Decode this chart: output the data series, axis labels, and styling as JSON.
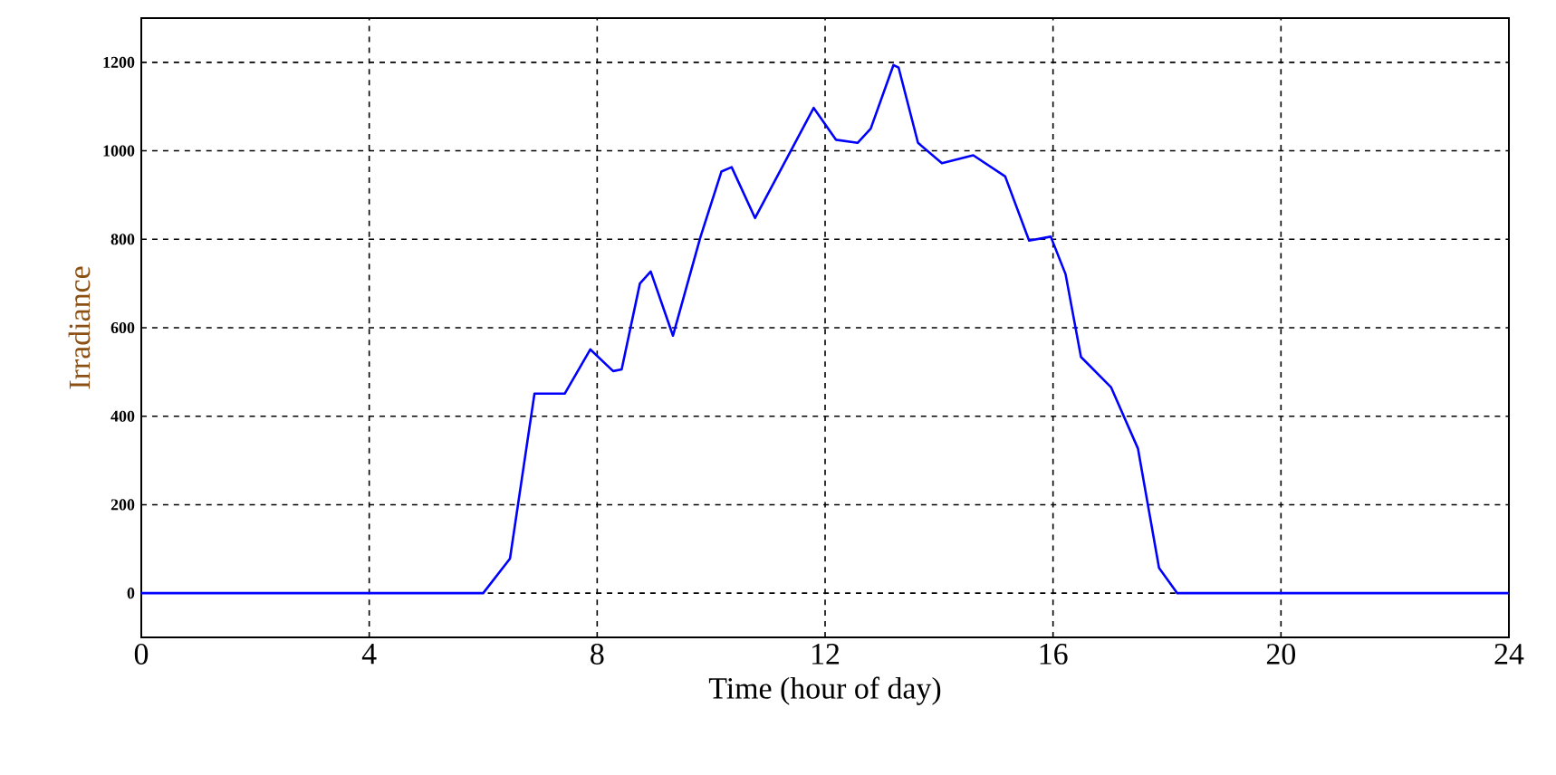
{
  "chart_data": {
    "type": "line",
    "xlabel": "Time (hour of day)",
    "ylabel": "Irradiance",
    "x": [
      0,
      6.0,
      6.47,
      6.9,
      7.43,
      7.88,
      8.28,
      8.43,
      8.75,
      8.94,
      9.33,
      9.81,
      10.18,
      10.36,
      10.77,
      11.8,
      12.19,
      12.57,
      12.8,
      13.2,
      13.29,
      13.63,
      14.05,
      14.6,
      15.16,
      15.58,
      15.96,
      16.22,
      16.49,
      17.02,
      17.49,
      17.86,
      18.18,
      24
    ],
    "series": [
      {
        "color": "#0000ff",
        "values": [
          0,
          0,
          78,
          451,
          451,
          551,
          502,
          506,
          700,
          727,
          582,
          804,
          953,
          963,
          848,
          1097,
          1025,
          1018,
          1050,
          1194,
          1188,
          1018,
          972,
          990,
          942,
          797,
          806,
          721,
          534,
          465,
          327,
          57,
          0,
          0
        ]
      }
    ],
    "xlim": [
      0,
      24
    ],
    "ylim": [
      -100,
      1300
    ],
    "xticks": [
      0,
      4,
      8,
      12,
      16,
      20,
      24
    ],
    "yticks": [
      0,
      200,
      400,
      600,
      800,
      1000,
      1200
    ],
    "grid": true,
    "line_style": "solid",
    "marker": "none"
  }
}
